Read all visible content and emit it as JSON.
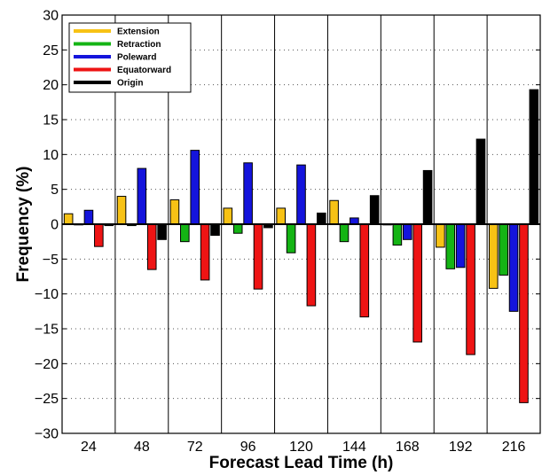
{
  "chart_data": {
    "type": "bar",
    "xlabel": "Forecast Lead Time (h)",
    "ylabel": "Frequency (%)",
    "ylim": [
      -30,
      30
    ],
    "yticks": [
      -30,
      -25,
      -20,
      -15,
      -10,
      -5,
      0,
      5,
      10,
      15,
      20,
      25,
      30
    ],
    "categories": [
      "24",
      "48",
      "72",
      "96",
      "120",
      "144",
      "168",
      "192",
      "216"
    ],
    "grid": "horizontal dotted",
    "legend_position": "top-left",
    "series": [
      {
        "name": "Extension",
        "color": "#f7c215",
        "values": [
          1.5,
          4.0,
          3.5,
          2.3,
          2.3,
          3.4,
          0.0,
          -3.3,
          -9.2
        ]
      },
      {
        "name": "Retraction",
        "color": "#14b414",
        "values": [
          0.0,
          -0.2,
          -2.5,
          -1.3,
          -4.1,
          -2.5,
          -3.0,
          -6.4,
          -7.3
        ]
      },
      {
        "name": "Poleward",
        "color": "#1414dc",
        "values": [
          2.0,
          8.0,
          10.6,
          8.8,
          8.5,
          0.9,
          -2.2,
          -6.2,
          -12.5
        ]
      },
      {
        "name": "Equatorward",
        "color": "#ee1414",
        "values": [
          -3.2,
          -6.5,
          -8.0,
          -9.3,
          -11.7,
          -13.3,
          -16.9,
          -18.7,
          -25.6
        ]
      },
      {
        "name": "Origin",
        "color": "#000000",
        "values": [
          -0.2,
          -2.2,
          -1.6,
          -0.5,
          1.6,
          4.1,
          7.7,
          12.2,
          19.3
        ]
      }
    ]
  }
}
